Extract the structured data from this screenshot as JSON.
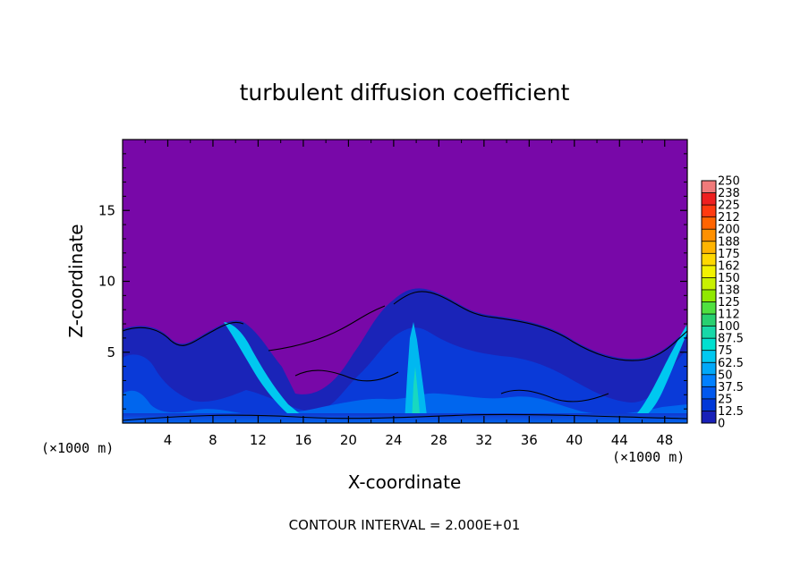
{
  "chart_data": {
    "type": "heatmap",
    "title": "turbulent diffusion coefficient",
    "xlabel": "X-coordinate",
    "ylabel": "Z-coordinate",
    "x_unit_left": "(×1000 m)",
    "x_unit_right": "(×1000 m)",
    "xlim": [
      0,
      50
    ],
    "ylim": [
      0,
      20
    ],
    "x_ticks": [
      4,
      8,
      12,
      16,
      20,
      24,
      28,
      32,
      36,
      40,
      44,
      48
    ],
    "y_ticks": [
      5,
      10,
      15
    ],
    "colorbar": {
      "labels": [
        "250",
        "238",
        "225",
        "212",
        "200",
        "188",
        "175",
        "162",
        "150",
        "138",
        "125",
        "112",
        "100",
        "87.5",
        "75",
        "62.5",
        "50",
        "37.5",
        "25",
        "12.5",
        "0"
      ],
      "colors": [
        "#f07a7a",
        "#ee2020",
        "#ff3a10",
        "#ff6400",
        "#ff9000",
        "#ffb400",
        "#ffd800",
        "#f2f200",
        "#c8f000",
        "#90e800",
        "#50e040",
        "#28d070",
        "#18d8a8",
        "#00e0d0",
        "#00c8f0",
        "#00a8f8",
        "#0080ff",
        "#0058ee",
        "#0038d8",
        "#1820b8",
        "#7808a8"
      ]
    },
    "background_level": 0,
    "footer": "CONTOUR INTERVAL = 2.000E+01"
  }
}
